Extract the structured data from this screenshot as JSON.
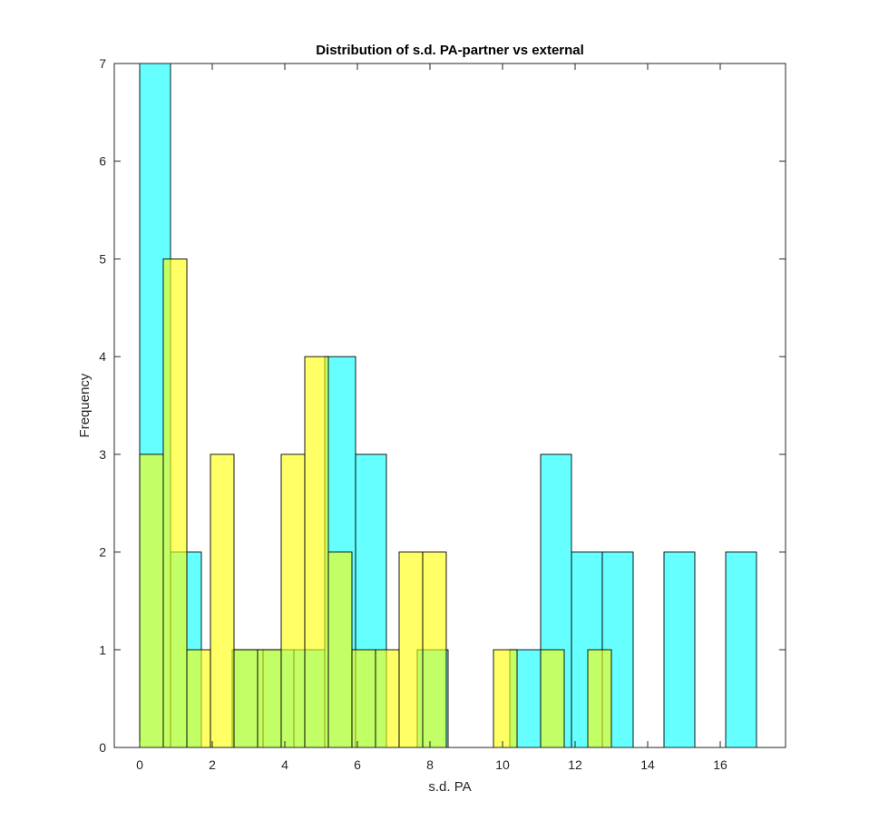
{
  "chart_data": {
    "type": "bar",
    "title": "Distribution of s.d. PA-partner vs external",
    "xlabel": "s.d. PA",
    "ylabel": "Frequency",
    "xlim": [
      -0.7,
      17.8
    ],
    "ylim": [
      0,
      7
    ],
    "xticks": [
      0,
      2,
      4,
      6,
      8,
      10,
      12,
      14,
      16
    ],
    "yticks": [
      0,
      1,
      2,
      3,
      4,
      5,
      6,
      7
    ],
    "grid": false,
    "legend": "none",
    "series": [
      {
        "color": "#00ffff",
        "opacity": 0.6,
        "bin_width": 0.85,
        "bins": [
          {
            "left": 0.0,
            "count": 7
          },
          {
            "left": 0.85,
            "count": 2
          },
          {
            "left": 1.7,
            "count": 0
          },
          {
            "left": 2.55,
            "count": 1
          },
          {
            "left": 3.4,
            "count": 1
          },
          {
            "left": 4.25,
            "count": 1
          },
          {
            "left": 5.1,
            "count": 4
          },
          {
            "left": 5.95,
            "count": 3
          },
          {
            "left": 6.8,
            "count": 0
          },
          {
            "left": 7.65,
            "count": 1
          },
          {
            "left": 8.5,
            "count": 0
          },
          {
            "left": 9.35,
            "count": 0
          },
          {
            "left": 10.2,
            "count": 1
          },
          {
            "left": 11.05,
            "count": 3
          },
          {
            "left": 11.9,
            "count": 2
          },
          {
            "left": 12.75,
            "count": 2
          },
          {
            "left": 13.6,
            "count": 0
          },
          {
            "left": 14.45,
            "count": 2
          },
          {
            "left": 15.3,
            "count": 0
          },
          {
            "left": 16.15,
            "count": 2
          }
        ]
      },
      {
        "color": "#ffff00",
        "opacity": 0.6,
        "bin_width": 0.65,
        "bins": [
          {
            "left": 0.0,
            "count": 3
          },
          {
            "left": 0.65,
            "count": 5
          },
          {
            "left": 1.3,
            "count": 1
          },
          {
            "left": 1.95,
            "count": 3
          },
          {
            "left": 2.6,
            "count": 1
          },
          {
            "left": 3.25,
            "count": 1
          },
          {
            "left": 3.9,
            "count": 3
          },
          {
            "left": 4.55,
            "count": 4
          },
          {
            "left": 5.2,
            "count": 2
          },
          {
            "left": 5.85,
            "count": 1
          },
          {
            "left": 6.5,
            "count": 1
          },
          {
            "left": 7.15,
            "count": 2
          },
          {
            "left": 7.8,
            "count": 2
          },
          {
            "left": 8.45,
            "count": 0
          },
          {
            "left": 9.1,
            "count": 0
          },
          {
            "left": 9.75,
            "count": 1
          },
          {
            "left": 10.4,
            "count": 0
          },
          {
            "left": 11.05,
            "count": 1
          },
          {
            "left": 11.7,
            "count": 0
          },
          {
            "left": 12.35,
            "count": 1
          }
        ]
      }
    ]
  }
}
